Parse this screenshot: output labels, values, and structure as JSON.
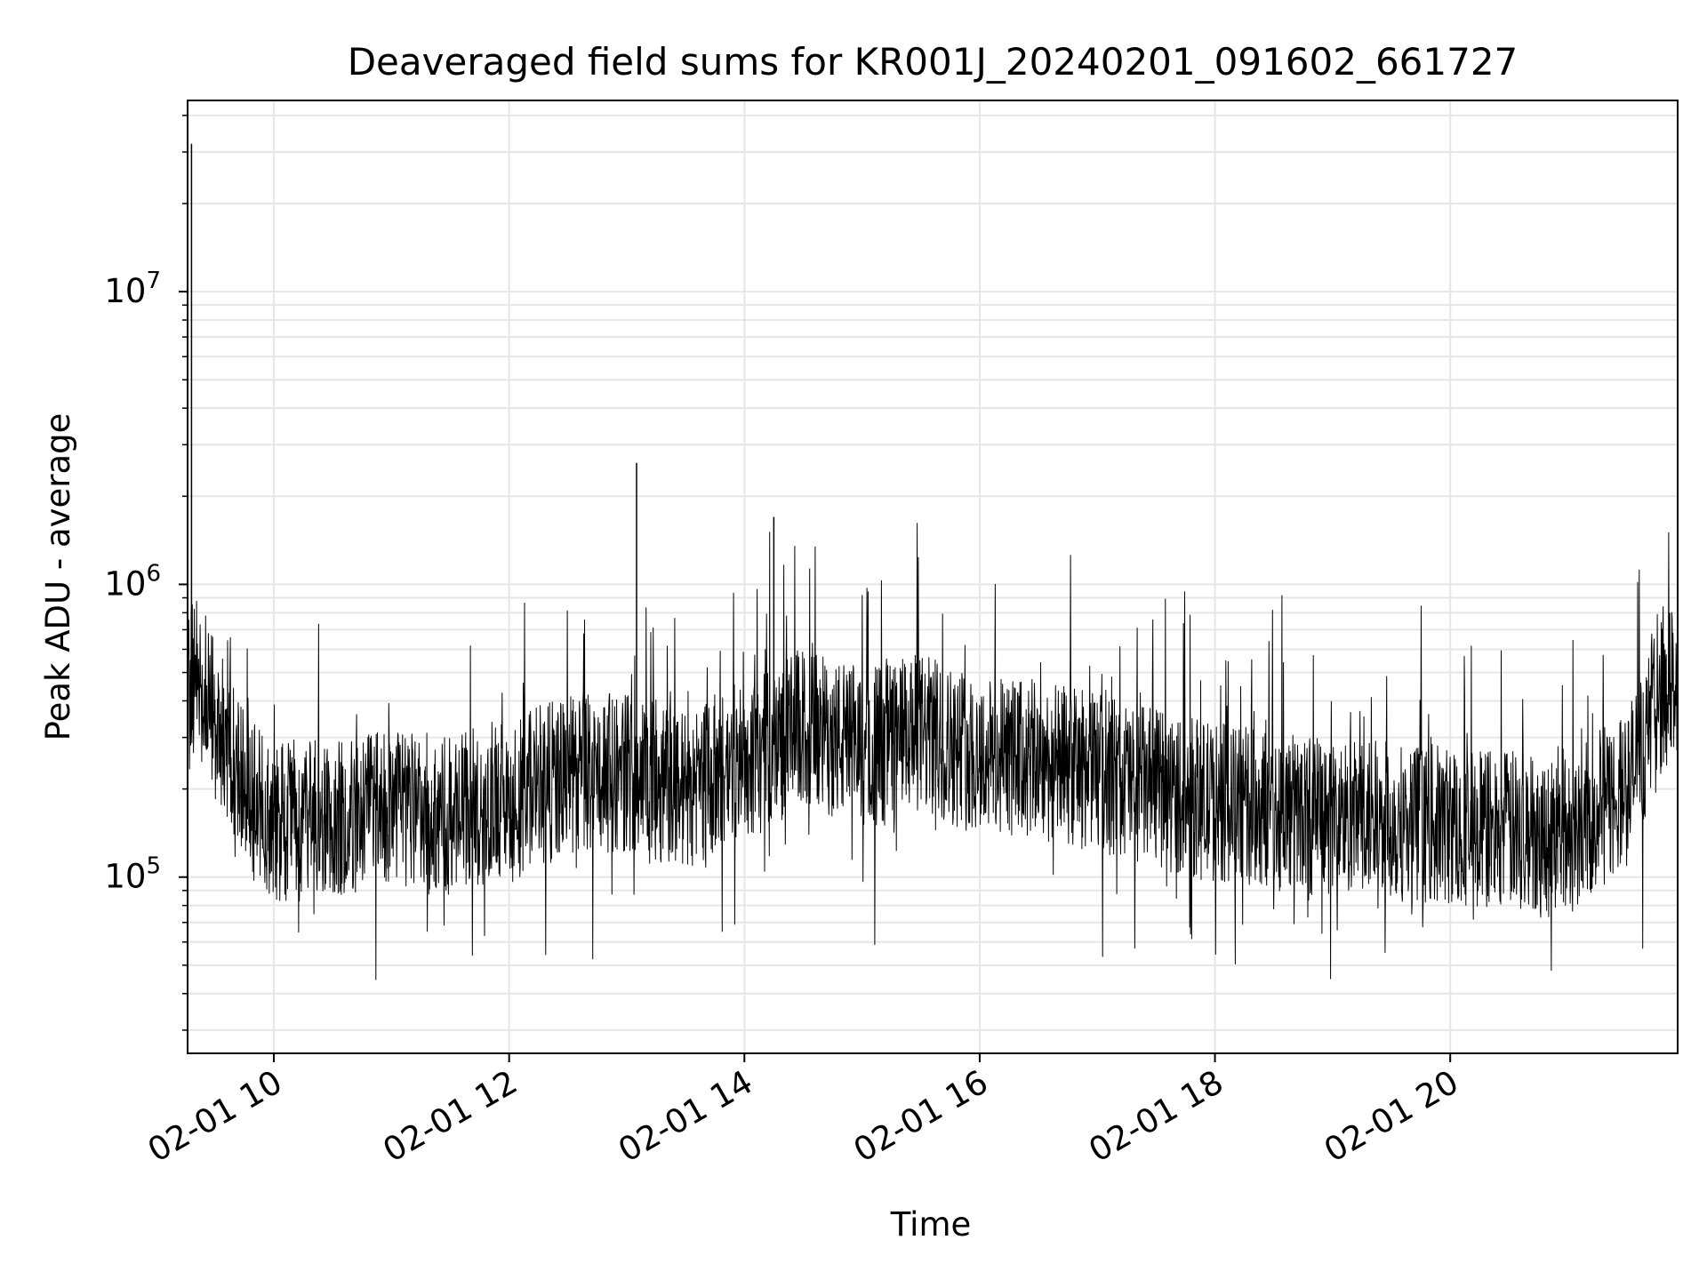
{
  "chart_data": {
    "type": "line",
    "title": "Deaveraged field sums for KR001J_20240201_091602_661727",
    "xlabel": "Time",
    "ylabel": "Peak ADU - average",
    "x_tick_labels": [
      "02-01 10",
      "02-01 12",
      "02-01 14",
      "02-01 16",
      "02-01 18",
      "02-01 20"
    ],
    "x_tick_values": [
      "2024-02-01T10:00",
      "2024-02-01T12:00",
      "2024-02-01T14:00",
      "2024-02-01T16:00",
      "2024-02-01T18:00",
      "2024-02-01T20:00"
    ],
    "xlim": [
      "2024-02-01T09:16",
      "2024-02-01T21:56"
    ],
    "y_scale": "log",
    "ylim": [
      25000,
      45000000
    ],
    "y_tick_labels": [
      {
        "value": 100000,
        "base": "10",
        "exp": "5"
      },
      {
        "value": 1000000,
        "base": "10",
        "exp": "6"
      },
      {
        "value": 10000000,
        "base": "10",
        "exp": "7"
      }
    ],
    "grid": true,
    "line_color": "#000000",
    "grid_color": "#e6e6e6",
    "series": [
      {
        "x": [
          "2024-02-01T09:16",
          "2024-02-01T09:18",
          "2024-02-01T09:20",
          "2024-02-01T09:30",
          "2024-02-01T09:40",
          "2024-02-01T09:50",
          "2024-02-01T10:00",
          "2024-02-01T10:30",
          "2024-02-01T11:00",
          "2024-02-01T11:30",
          "2024-02-01T12:00",
          "2024-02-01T12:30",
          "2024-02-01T13:00",
          "2024-02-01T13:05",
          "2024-02-01T13:30",
          "2024-02-01T14:00",
          "2024-02-01T14:15",
          "2024-02-01T14:30",
          "2024-02-01T15:00",
          "2024-02-01T15:30",
          "2024-02-01T16:00",
          "2024-02-01T16:30",
          "2024-02-01T17:00",
          "2024-02-01T17:30",
          "2024-02-01T18:00",
          "2024-02-01T18:30",
          "2024-02-01T19:00",
          "2024-02-01T19:30",
          "2024-02-01T20:00",
          "2024-02-01T20:30",
          "2024-02-01T21:00",
          "2024-02-01T21:30",
          "2024-02-01T21:50",
          "2024-02-01T21:56"
        ],
        "y": [
          400000,
          32000000,
          500000,
          350000,
          250000,
          180000,
          150000,
          160000,
          170000,
          160000,
          190000,
          220000,
          230000,
          2600000,
          200000,
          250000,
          1700000,
          320000,
          280000,
          310000,
          260000,
          250000,
          230000,
          200000,
          180000,
          170000,
          160000,
          155000,
          150000,
          145000,
          140000,
          200000,
          450000,
          1400000
        ]
      }
    ]
  }
}
